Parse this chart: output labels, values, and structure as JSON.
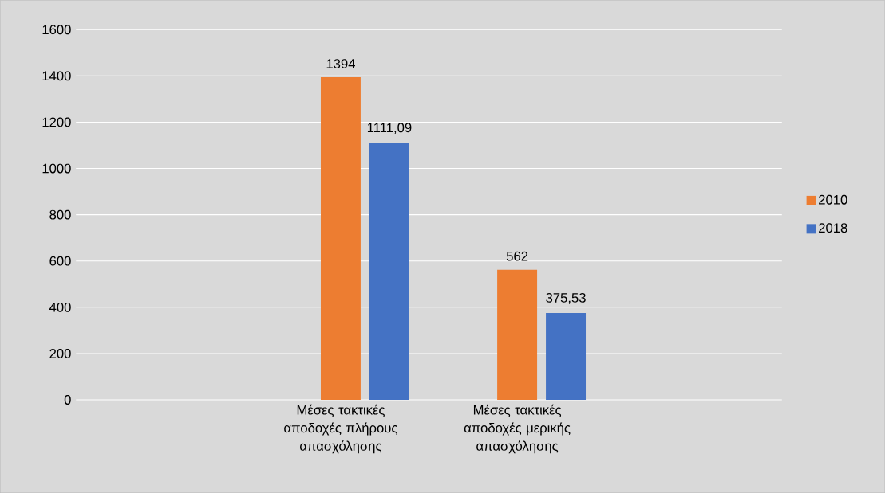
{
  "chart_data": {
    "type": "bar",
    "categories": [
      null,
      "Μέσες τακτικές αποδοχές πλήρους απασχόλησης",
      "Μέσες τακτικές αποδοχές μερικής απασχόλησης",
      null
    ],
    "series": [
      {
        "name": "2010",
        "color": "#ed7d31",
        "values": [
          null,
          1394,
          562,
          null
        ],
        "value_labels": [
          null,
          "1394",
          "562",
          null
        ]
      },
      {
        "name": "2018",
        "color": "#4472c4",
        "values": [
          null,
          1111.09,
          375.53,
          null
        ],
        "value_labels": [
          null,
          "1111,09",
          "375,53",
          null
        ]
      }
    ],
    "ylim": [
      0,
      1600
    ],
    "yticks": [
      0,
      200,
      400,
      600,
      800,
      1000,
      1200,
      1400,
      1600
    ],
    "grid": "y",
    "legend": "right"
  }
}
